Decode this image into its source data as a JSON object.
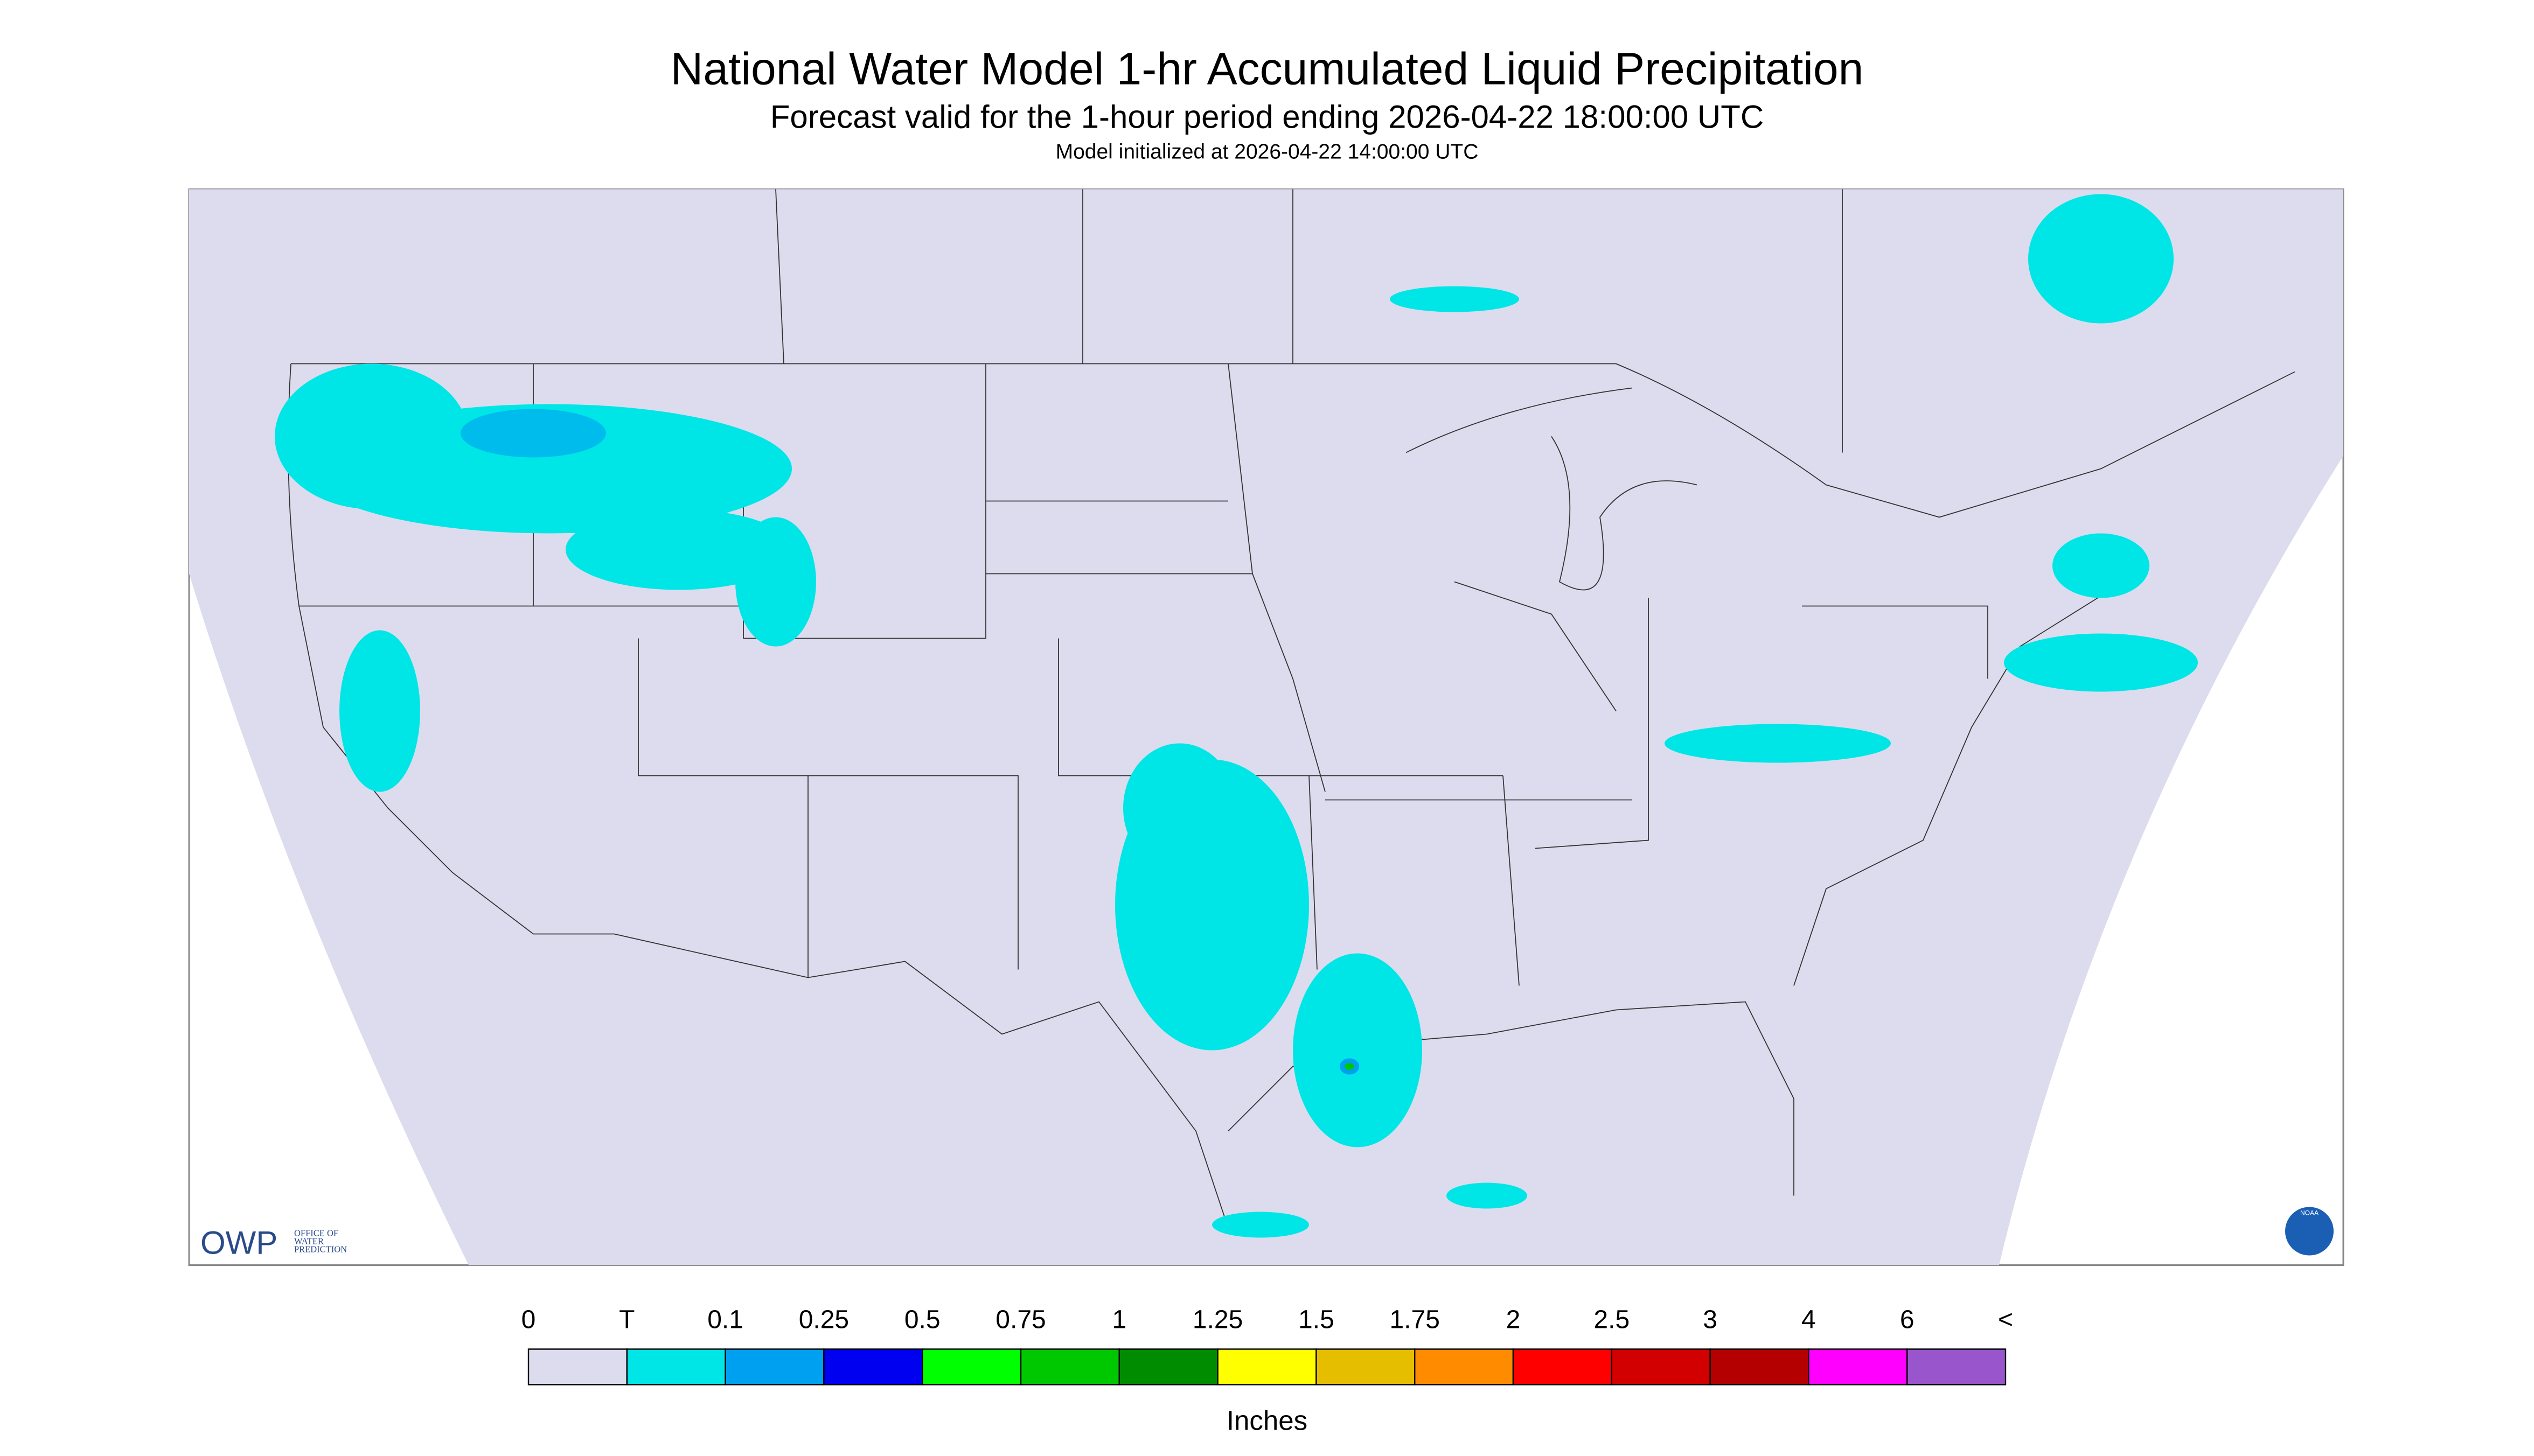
{
  "header": {
    "title": "National Water Model 1-hr Accumulated Liquid Precipitation",
    "subtitle": "Forecast valid for the 1-hour period ending 2026-04-22 18:00:00 UTC",
    "init": "Model initialized at 2026-04-22 14:00:00 UTC"
  },
  "logos": {
    "owp": "OWP",
    "owp_lines": [
      "OFFICE OF",
      "WATER",
      "PREDICTION"
    ],
    "noaa": "NOAA"
  },
  "colorbar": {
    "labels": [
      "0",
      "T",
      "0.1",
      "0.25",
      "0.5",
      "0.75",
      "1",
      "1.25",
      "1.5",
      "1.75",
      "2",
      "2.5",
      "3",
      "4",
      "6",
      "<"
    ],
    "colors": [
      "#dcdcee",
      "#00e6e6",
      "#00a0f0",
      "#0000f0",
      "#00ff00",
      "#00c800",
      "#008c00",
      "#ffff00",
      "#e6be00",
      "#ff8c00",
      "#ff0000",
      "#d20000",
      "#b40000",
      "#ff00ff",
      "#9955cc"
    ],
    "units": "Inches"
  }
}
